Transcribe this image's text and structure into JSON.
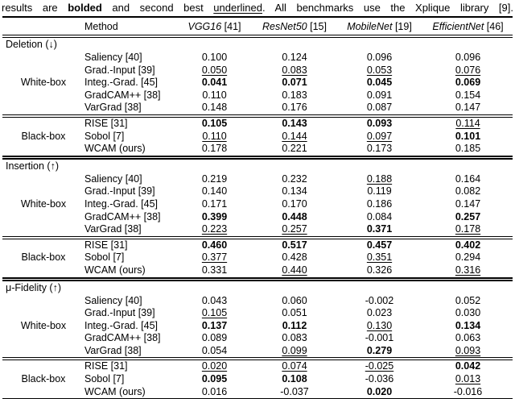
{
  "caption": {
    "part1": "results are ",
    "bolded": "bolded",
    "part2": " and second best ",
    "underlined": "underlined",
    "part3": ". All benchmarks use the Xplique library [9]."
  },
  "table": {
    "method_header": "Method",
    "columns": [
      {
        "name": "VGG16",
        "cite": "[41]"
      },
      {
        "name": "ResNet50",
        "cite": "[15]"
      },
      {
        "name": "MobileNet",
        "cite": "[19]"
      },
      {
        "name": "EfficientNet",
        "cite": "[46]"
      }
    ],
    "sections": [
      {
        "title": "Deletion (↓)",
        "groups": [
          {
            "label": "White-box",
            "rows": [
              {
                "method": "Saliency [40]",
                "values": [
                  "0.100",
                  "0.124",
                  "0.096",
                  "0.096"
                ],
                "styles": [
                  "n",
                  "n",
                  "n",
                  "n"
                ]
              },
              {
                "method": "Grad.-Input [39]",
                "values": [
                  "0.050",
                  "0.083",
                  "0.053",
                  "0.076"
                ],
                "styles": [
                  "u",
                  "u",
                  "u",
                  "u"
                ]
              },
              {
                "method": "Integ.-Grad. [45]",
                "values": [
                  "0.041",
                  "0.071",
                  "0.045",
                  "0.069"
                ],
                "styles": [
                  "b",
                  "b",
                  "b",
                  "b"
                ]
              },
              {
                "method": "GradCAM++ [38]",
                "values": [
                  "0.110",
                  "0.183",
                  "0.091",
                  "0.154"
                ],
                "styles": [
                  "n",
                  "n",
                  "n",
                  "n"
                ]
              },
              {
                "method": "VarGrad [38]",
                "values": [
                  "0.148",
                  "0.176",
                  "0.087",
                  "0.147"
                ],
                "styles": [
                  "n",
                  "n",
                  "n",
                  "n"
                ]
              }
            ]
          },
          {
            "label": "Black-box",
            "rows": [
              {
                "method": "RISE [31]",
                "values": [
                  "0.105",
                  "0.143",
                  "0.093",
                  "0.114"
                ],
                "styles": [
                  "b",
                  "b",
                  "b",
                  "u"
                ]
              },
              {
                "method": "Sobol [7]",
                "values": [
                  "0.110",
                  "0.144",
                  "0.097",
                  "0.101"
                ],
                "styles": [
                  "u",
                  "u",
                  "u",
                  "b"
                ]
              },
              {
                "method": "WCAM (ours)",
                "values": [
                  "0.178",
                  "0.221",
                  "0.173",
                  "0.185"
                ],
                "styles": [
                  "n",
                  "n",
                  "n",
                  "n"
                ]
              }
            ]
          }
        ]
      },
      {
        "title": "Insertion (↑)",
        "groups": [
          {
            "label": "White-box",
            "rows": [
              {
                "method": "Saliency [40]",
                "values": [
                  "0.219",
                  "0.232",
                  "0.188",
                  "0.164"
                ],
                "styles": [
                  "n",
                  "n",
                  "u",
                  "n"
                ]
              },
              {
                "method": "Grad.-Input [39]",
                "values": [
                  "0.140",
                  "0.134",
                  "0.119",
                  "0.082"
                ],
                "styles": [
                  "n",
                  "n",
                  "n",
                  "n"
                ]
              },
              {
                "method": "Integ.-Grad. [45]",
                "values": [
                  "0.171",
                  "0.170",
                  "0.186",
                  "0.147"
                ],
                "styles": [
                  "n",
                  "n",
                  "n",
                  "n"
                ]
              },
              {
                "method": "GradCAM++ [38]",
                "values": [
                  "0.399",
                  "0.448",
                  "0.084",
                  "0.257"
                ],
                "styles": [
                  "b",
                  "b",
                  "n",
                  "b"
                ]
              },
              {
                "method": "VarGrad [38]",
                "values": [
                  "0.223",
                  "0.257",
                  "0.371",
                  "0.178"
                ],
                "styles": [
                  "u",
                  "u",
                  "b",
                  "u"
                ]
              }
            ]
          },
          {
            "label": "Black-box",
            "rows": [
              {
                "method": "RISE [31]",
                "values": [
                  "0.460",
                  "0.517",
                  "0.457",
                  "0.402"
                ],
                "styles": [
                  "b",
                  "b",
                  "b",
                  "b"
                ]
              },
              {
                "method": "Sobol [7]",
                "values": [
                  "0.377",
                  "0.428",
                  "0.351",
                  "0.294"
                ],
                "styles": [
                  "u",
                  "n",
                  "u",
                  "n"
                ]
              },
              {
                "method": "WCAM (ours)",
                "values": [
                  "0.331",
                  "0.440",
                  "0.326",
                  "0.316"
                ],
                "styles": [
                  "n",
                  "u",
                  "n",
                  "u"
                ]
              }
            ]
          }
        ]
      },
      {
        "title": "μ-Fidelity (↑)",
        "groups": [
          {
            "label": "White-box",
            "rows": [
              {
                "method": "Saliency [40]",
                "values": [
                  "0.043",
                  "0.060",
                  "-0.002",
                  "0.052"
                ],
                "styles": [
                  "n",
                  "n",
                  "n",
                  "n"
                ]
              },
              {
                "method": "Grad.-Input [39]",
                "values": [
                  "0.105",
                  "0.051",
                  "0.023",
                  "0.030"
                ],
                "styles": [
                  "u",
                  "n",
                  "n",
                  "n"
                ]
              },
              {
                "method": "Integ.-Grad. [45]",
                "values": [
                  "0.137",
                  "0.112",
                  "0.130",
                  "0.134"
                ],
                "styles": [
                  "b",
                  "b",
                  "u",
                  "b"
                ]
              },
              {
                "method": "GradCAM++ [38]",
                "values": [
                  "0.089",
                  "0.083",
                  "-0.001",
                  "0.063"
                ],
                "styles": [
                  "n",
                  "n",
                  "n",
                  "n"
                ]
              },
              {
                "method": "VarGrad [38]",
                "values": [
                  "0.054",
                  "0.099",
                  "0.279",
                  "0.093"
                ],
                "styles": [
                  "n",
                  "u",
                  "b",
                  "u"
                ]
              }
            ]
          },
          {
            "label": "Black-box",
            "rows": [
              {
                "method": "RISE [31]",
                "values": [
                  "0.020",
                  "0.074",
                  "-0.025",
                  "0.042"
                ],
                "styles": [
                  "u",
                  "u",
                  "u",
                  "b"
                ]
              },
              {
                "method": "Sobol [7]",
                "values": [
                  "0.095",
                  "0.108",
                  "-0.036",
                  "0.013"
                ],
                "styles": [
                  "b",
                  "b",
                  "n",
                  "u"
                ]
              },
              {
                "method": "WCAM (ours)",
                "values": [
                  "0.016",
                  "-0.037",
                  "0.020",
                  "-0.016"
                ],
                "styles": [
                  "n",
                  "n",
                  "b",
                  "n"
                ]
              }
            ]
          }
        ]
      }
    ]
  }
}
